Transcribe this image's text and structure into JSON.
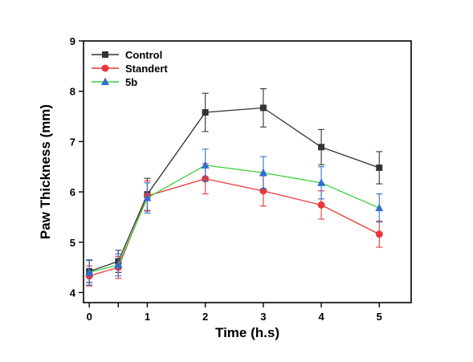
{
  "chart_data": {
    "type": "line",
    "xlabel": "Time (h.s)",
    "ylabel": "Paw Thickness (mm)",
    "xlim": [
      -0.1,
      5.55
    ],
    "ylim": [
      3.8,
      9.0
    ],
    "x_ticks": [
      0,
      0.5,
      1,
      2,
      3,
      4,
      5
    ],
    "x_tick_labels": [
      "0",
      "",
      "1",
      "2",
      "3",
      "4",
      "5"
    ],
    "y_ticks": [
      4,
      5,
      6,
      7,
      8,
      9
    ],
    "legend_position": "top-left",
    "grid": false,
    "x": [
      0,
      0.5,
      1,
      2,
      3,
      4,
      5
    ],
    "series": [
      {
        "name": "Control",
        "color": "#333333",
        "marker": "square",
        "values": [
          4.42,
          4.62,
          5.95,
          7.58,
          7.67,
          6.89,
          6.48
        ],
        "errors": [
          0.22,
          0.22,
          0.32,
          0.38,
          0.38,
          0.35,
          0.32
        ]
      },
      {
        "name": "Standert",
        "color": "#e8383b",
        "marker": "circle",
        "values": [
          4.33,
          4.5,
          5.92,
          6.26,
          6.02,
          5.74,
          5.16
        ],
        "errors": [
          0.2,
          0.22,
          0.3,
          0.3,
          0.3,
          0.28,
          0.26
        ]
      },
      {
        "name": "5b",
        "color": "#2f6fd1",
        "marker": "triangle",
        "legend_line_color": "#3ccf3c",
        "line_color": "#3ccf3c",
        "values": [
          4.4,
          4.55,
          5.88,
          6.53,
          6.38,
          6.18,
          5.68
        ],
        "errors": [
          0.25,
          0.22,
          0.3,
          0.32,
          0.32,
          0.32,
          0.28
        ]
      }
    ]
  }
}
